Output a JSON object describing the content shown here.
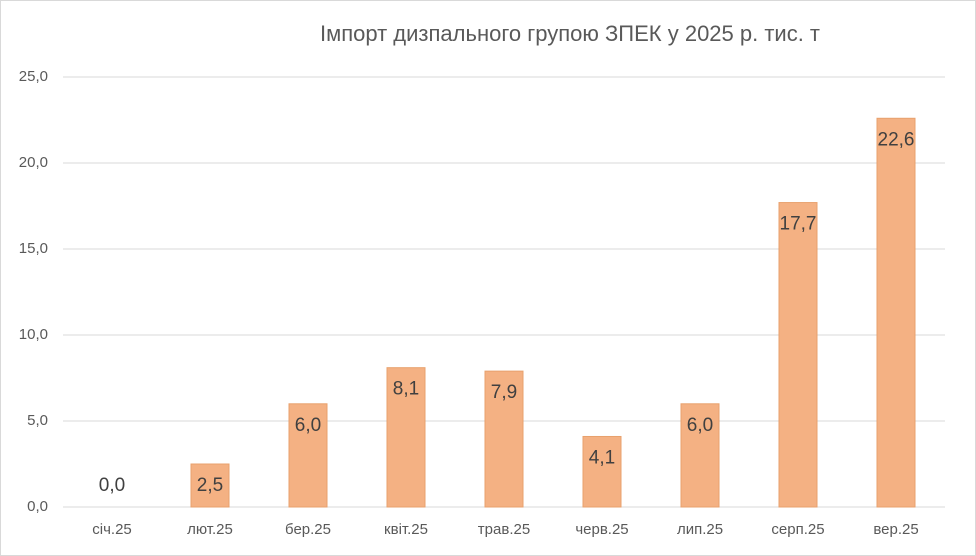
{
  "chart_data": {
    "type": "bar",
    "title": "Імпорт дизпального групою ЗПЕК у 2025 р. тис. т",
    "categories": [
      "січ.25",
      "лют.25",
      "бер.25",
      "квіт.25",
      "трав.25",
      "черв.25",
      "лип.25",
      "серп.25",
      "вер.25"
    ],
    "values": [
      0.0,
      2.5,
      6.0,
      8.1,
      7.9,
      4.1,
      6.0,
      17.7,
      22.6
    ],
    "value_labels": [
      "0,0",
      "2,5",
      "6,0",
      "8,1",
      "7,9",
      "4,1",
      "6,0",
      "17,7",
      "22,6"
    ],
    "color": "#f4b183",
    "ylim": [
      0,
      25
    ],
    "yticks": [
      {
        "value": 0,
        "label": "0,0"
      },
      {
        "value": 5,
        "label": "5,0"
      },
      {
        "value": 10,
        "label": "10,0"
      },
      {
        "value": 15,
        "label": "15,0"
      },
      {
        "value": 20,
        "label": "20,0"
      },
      {
        "value": 25,
        "label": "25,0"
      }
    ],
    "grid": true
  }
}
